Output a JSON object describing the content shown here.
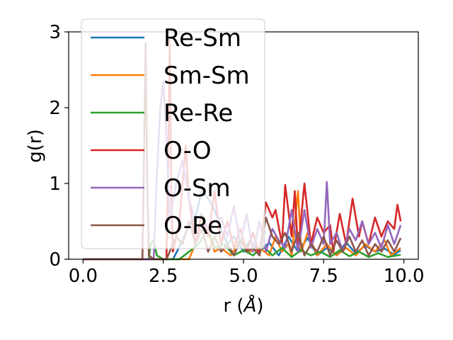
{
  "chart_data": {
    "type": "line",
    "xlabel": "r (",
    "xlabel_unit": "Å",
    "xlabel_close": ")",
    "ylabel": "g(r)",
    "xlim": [
      -0.45,
      10.45
    ],
    "ylim": [
      0,
      3
    ],
    "xticks": [
      0.0,
      2.5,
      5.0,
      7.5,
      10.0
    ],
    "xtick_labels": [
      "0.0",
      "2.5",
      "5.0",
      "7.5",
      "10.0"
    ],
    "yticks": [
      0,
      1,
      2,
      3
    ],
    "ytick_labels": [
      "0",
      "1",
      "2",
      "3"
    ],
    "grid": false,
    "legend_position": "upper-left",
    "series": [
      {
        "name": "Re-Sm",
        "color": "#1f77b4",
        "points": [
          [
            0,
            0
          ],
          [
            2.8,
            0
          ],
          [
            2.9,
            0.08
          ],
          [
            3.1,
            0.25
          ],
          [
            3.3,
            0.45
          ],
          [
            3.5,
            0.55
          ],
          [
            3.7,
            0.9
          ],
          [
            3.9,
            0.8
          ],
          [
            4.1,
            0.65
          ],
          [
            4.3,
            0.4
          ],
          [
            4.5,
            0.2
          ],
          [
            4.7,
            0.3
          ],
          [
            5.0,
            0.1
          ],
          [
            5.2,
            0.25
          ],
          [
            5.5,
            0.1
          ],
          [
            5.8,
            0.22
          ],
          [
            6.1,
            0.05
          ],
          [
            6.4,
            0.3
          ],
          [
            6.7,
            0.1
          ],
          [
            7.0,
            0.28
          ],
          [
            7.3,
            0.05
          ],
          [
            7.6,
            0.15
          ],
          [
            7.9,
            0.06
          ],
          [
            8.2,
            0.22
          ],
          [
            8.5,
            0.08
          ],
          [
            8.8,
            0.18
          ],
          [
            9.1,
            0.1
          ],
          [
            9.4,
            0.14
          ],
          [
            9.7,
            0.06
          ],
          [
            9.9,
            0.12
          ]
        ]
      },
      {
        "name": "Sm-Sm",
        "color": "#ff7f0e",
        "points": [
          [
            0,
            0
          ],
          [
            3.3,
            0
          ],
          [
            3.5,
            0.2
          ],
          [
            3.7,
            0.55
          ],
          [
            3.9,
            0.35
          ],
          [
            4.1,
            0.1
          ],
          [
            4.3,
            0.15
          ],
          [
            4.6,
            0.05
          ],
          [
            4.9,
            0.25
          ],
          [
            5.2,
            0.1
          ],
          [
            5.5,
            0.15
          ],
          [
            5.8,
            0.05
          ],
          [
            6.0,
            0.3
          ],
          [
            6.2,
            0.1
          ],
          [
            6.4,
            0.2
          ],
          [
            6.5,
            0.05
          ],
          [
            6.7,
            0.9
          ],
          [
            6.8,
            0.1
          ],
          [
            7.0,
            0.35
          ],
          [
            7.3,
            0.05
          ],
          [
            7.6,
            0.2
          ],
          [
            7.9,
            0.05
          ],
          [
            8.2,
            0.15
          ],
          [
            8.5,
            0.05
          ],
          [
            8.8,
            0.2
          ],
          [
            9.1,
            0.1
          ],
          [
            9.4,
            0.25
          ],
          [
            9.6,
            0.05
          ],
          [
            9.9,
            0.15
          ]
        ]
      },
      {
        "name": "Re-Re",
        "color": "#2ca02c",
        "points": [
          [
            0,
            0
          ],
          [
            2.05,
            0
          ],
          [
            2.1,
            0.2
          ],
          [
            2.2,
            0.25
          ],
          [
            2.3,
            0.05
          ],
          [
            2.5,
            0.0
          ],
          [
            3.0,
            0.0
          ],
          [
            3.3,
            0.1
          ],
          [
            3.6,
            0.2
          ],
          [
            3.9,
            0.4
          ],
          [
            4.1,
            0.15
          ],
          [
            4.4,
            0.2
          ],
          [
            4.7,
            0.05
          ],
          [
            5.0,
            0.12
          ],
          [
            5.3,
            0.05
          ],
          [
            5.6,
            0.18
          ],
          [
            5.9,
            0.05
          ],
          [
            6.2,
            0.15
          ],
          [
            6.5,
            0.03
          ],
          [
            6.8,
            0.12
          ],
          [
            7.1,
            0.05
          ],
          [
            7.4,
            0.1
          ],
          [
            7.7,
            0.03
          ],
          [
            8.0,
            0.12
          ],
          [
            8.3,
            0.04
          ],
          [
            8.6,
            0.1
          ],
          [
            8.9,
            0.03
          ],
          [
            9.2,
            0.08
          ],
          [
            9.5,
            0.03
          ],
          [
            9.9,
            0.06
          ]
        ]
      },
      {
        "name": "O-O",
        "color": "#d62728",
        "points": [
          [
            0,
            0
          ],
          [
            2.6,
            0
          ],
          [
            2.65,
            1.2
          ],
          [
            2.7,
            2.9
          ],
          [
            2.75,
            0.8
          ],
          [
            2.8,
            0.1
          ],
          [
            3.0,
            0.5
          ],
          [
            3.2,
            1.5
          ],
          [
            3.3,
            0.8
          ],
          [
            3.5,
            0.2
          ],
          [
            3.7,
            0.6
          ],
          [
            3.9,
            0.3
          ],
          [
            4.1,
            0.9
          ],
          [
            4.3,
            0.2
          ],
          [
            4.5,
            0.5
          ],
          [
            4.7,
            0.15
          ],
          [
            4.9,
            0.4
          ],
          [
            5.1,
            0.1
          ],
          [
            5.3,
            0.35
          ],
          [
            5.5,
            0.05
          ],
          [
            5.7,
            0.75
          ],
          [
            5.9,
            0.55
          ],
          [
            6.0,
            0.65
          ],
          [
            6.2,
            0.2
          ],
          [
            6.3,
            0.98
          ],
          [
            6.5,
            0.3
          ],
          [
            6.6,
            0.9
          ],
          [
            6.7,
            0.1
          ],
          [
            6.9,
            1.0
          ],
          [
            7.1,
            0.2
          ],
          [
            7.3,
            0.55
          ],
          [
            7.5,
            0.35
          ],
          [
            7.7,
            0.45
          ],
          [
            7.8,
            0.1
          ],
          [
            8.0,
            0.6
          ],
          [
            8.2,
            0.2
          ],
          [
            8.4,
            0.8
          ],
          [
            8.6,
            0.3
          ],
          [
            8.7,
            0.5
          ],
          [
            8.9,
            0.2
          ],
          [
            9.1,
            0.55
          ],
          [
            9.3,
            0.3
          ],
          [
            9.5,
            0.5
          ],
          [
            9.7,
            0.4
          ],
          [
            9.8,
            0.72
          ],
          [
            9.9,
            0.5
          ]
        ]
      },
      {
        "name": "O-Sm",
        "color": "#9467bd",
        "points": [
          [
            0,
            0
          ],
          [
            2.2,
            0
          ],
          [
            2.3,
            1.1
          ],
          [
            2.4,
            1.97
          ],
          [
            2.5,
            2.35
          ],
          [
            2.6,
            1.6
          ],
          [
            2.7,
            0.5
          ],
          [
            2.9,
            1.0
          ],
          [
            3.1,
            1.3
          ],
          [
            3.3,
            0.8
          ],
          [
            3.5,
            0.5
          ],
          [
            3.7,
            0.6
          ],
          [
            3.9,
            0.4
          ],
          [
            4.1,
            0.5
          ],
          [
            4.3,
            0.55
          ],
          [
            4.5,
            0.3
          ],
          [
            4.7,
            0.7
          ],
          [
            4.9,
            0.2
          ],
          [
            5.1,
            0.6
          ],
          [
            5.3,
            0.1
          ],
          [
            5.5,
            0.5
          ],
          [
            5.7,
            0.1
          ],
          [
            5.9,
            0.4
          ],
          [
            6.1,
            0.25
          ],
          [
            6.3,
            0.15
          ],
          [
            6.5,
            0.65
          ],
          [
            6.7,
            0.1
          ],
          [
            6.9,
            0.65
          ],
          [
            7.1,
            0.15
          ],
          [
            7.3,
            0.4
          ],
          [
            7.5,
            0.2
          ],
          [
            7.6,
            1.02
          ],
          [
            7.7,
            0.2
          ],
          [
            7.9,
            0.35
          ],
          [
            8.1,
            0.1
          ],
          [
            8.3,
            0.4
          ],
          [
            8.5,
            0.25
          ],
          [
            8.7,
            0.5
          ],
          [
            8.9,
            0.2
          ],
          [
            9.1,
            0.35
          ],
          [
            9.3,
            0.15
          ],
          [
            9.5,
            0.45
          ],
          [
            9.7,
            0.2
          ],
          [
            9.9,
            0.45
          ]
        ]
      },
      {
        "name": "O-Re",
        "color": "#8c564b",
        "points": [
          [
            0,
            0
          ],
          [
            1.85,
            0
          ],
          [
            1.9,
            1.4
          ],
          [
            1.95,
            2.85
          ],
          [
            2.0,
            1.0
          ],
          [
            2.05,
            0.05
          ],
          [
            2.2,
            0.0
          ],
          [
            2.6,
            0.0
          ],
          [
            2.9,
            0.3
          ],
          [
            3.1,
            0.2
          ],
          [
            3.3,
            0.5
          ],
          [
            3.5,
            0.2
          ],
          [
            3.7,
            0.4
          ],
          [
            3.9,
            0.1
          ],
          [
            4.1,
            0.3
          ],
          [
            4.3,
            0.1
          ],
          [
            4.5,
            0.2
          ],
          [
            4.7,
            0.05
          ],
          [
            4.9,
            0.25
          ],
          [
            5.1,
            0.1
          ],
          [
            5.3,
            0.15
          ],
          [
            5.5,
            0.05
          ],
          [
            5.7,
            0.55
          ],
          [
            5.9,
            0.3
          ],
          [
            6.1,
            0.2
          ],
          [
            6.3,
            0.35
          ],
          [
            6.5,
            0.1
          ],
          [
            6.7,
            0.35
          ],
          [
            6.9,
            0.05
          ],
          [
            7.1,
            0.2
          ],
          [
            7.3,
            0.1
          ],
          [
            7.5,
            0.3
          ],
          [
            7.7,
            0.05
          ],
          [
            7.9,
            0.25
          ],
          [
            8.1,
            0.1
          ],
          [
            8.3,
            0.3
          ],
          [
            8.5,
            0.1
          ],
          [
            8.7,
            0.25
          ],
          [
            8.9,
            0.05
          ],
          [
            9.1,
            0.2
          ],
          [
            9.3,
            0.1
          ],
          [
            9.5,
            0.25
          ],
          [
            9.7,
            0.1
          ],
          [
            9.9,
            0.28
          ]
        ]
      }
    ]
  }
}
